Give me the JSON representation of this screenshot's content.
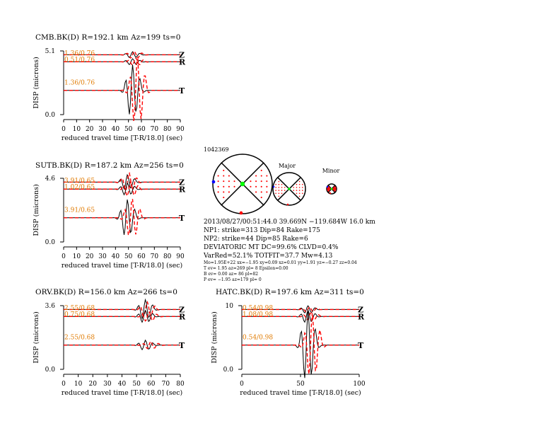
{
  "colors": {
    "observed": "#000000",
    "synthetic": "#ff0000",
    "label": "#e07a00",
    "dc": "#00ff00",
    "p_axis": "#ff0000",
    "t_axis": "#0000ff"
  },
  "common": {
    "xlabel": "reduced travel time [T-R/18.0] (sec)",
    "ylabel": "DISP (microns)",
    "zero_label": "0.0"
  },
  "stations": [
    {
      "title": "CMB.BK(D) R=192.1 km Az=199 ts=0",
      "ymax_label": "5.1",
      "xticks": [
        "0",
        "10",
        "20",
        "30",
        "40",
        "50",
        "60",
        "70",
        "80",
        "90"
      ],
      "traces": [
        {
          "comp": "Z",
          "fit": "1.36/0.76"
        },
        {
          "comp": "R",
          "fit": "0.51/0.76"
        },
        {
          "comp": "T",
          "fit": "1.36/0.76"
        }
      ]
    },
    {
      "title": "SUTB.BK(D) R=187.2 km Az=256 ts=0",
      "ymax_label": "4.6",
      "xticks": [
        "0",
        "10",
        "20",
        "30",
        "40",
        "50",
        "60",
        "70",
        "80",
        "90"
      ],
      "traces": [
        {
          "comp": "Z",
          "fit": "3.91/0.65"
        },
        {
          "comp": "R",
          "fit": "1.02/0.65"
        },
        {
          "comp": "T",
          "fit": "3.91/0.65"
        }
      ]
    },
    {
      "title": "ORV.BK(D) R=156.0 km Az=266 ts=0",
      "ymax_label": "3.6",
      "xticks": [
        "0",
        "10",
        "20",
        "30",
        "40",
        "50",
        "60",
        "70",
        "80"
      ],
      "traces": [
        {
          "comp": "Z",
          "fit": "2.55/0.68"
        },
        {
          "comp": "R",
          "fit": "0.75/0.68"
        },
        {
          "comp": "T",
          "fit": "2.55/0.68"
        }
      ]
    },
    {
      "title": "HATC.BK(D) R=197.6 km Az=311 ts=0",
      "ymax_label": "10",
      "xticks": [
        "0",
        "50",
        "100"
      ],
      "traces": [
        {
          "comp": "Z",
          "fit": "0.54/0.98"
        },
        {
          "comp": "R",
          "fit": "1.08/0.98"
        },
        {
          "comp": "T",
          "fit": "0.54/0.98"
        }
      ]
    }
  ],
  "mechanism": {
    "event_id": "1042369",
    "major_label": "Major",
    "minor_label": "Minor",
    "lines": [
      "2013/08/27/00:51:44.0 39.669N −119.684W 16.0 km",
      "NP1: strike=313 Dip=84 Rake=175",
      "NP2: strike=44 Dip=85 Rake=6",
      "DEVIATORIC MT DC=99.6% CLVD=0.4%",
      "VarRed=52.1% TOTFIT=37.7 Mw=4.13"
    ],
    "small_lines": [
      "Mo=1.95E+22 xx=−1.95 xy=0.09 xz=0.01 yy=1.91 yz=−0.27 zz=0.04",
      "T ev=  1.95 az=269 pl=  8 Epsilon=0.00",
      "B ev=  0.00 az= 86 pl=82",
      "P ev= −1.95 az=179 pl=  0"
    ]
  }
}
